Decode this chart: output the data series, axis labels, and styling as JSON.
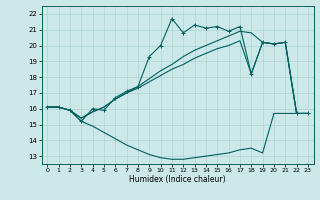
{
  "title": "",
  "xlabel": "Humidex (Indice chaleur)",
  "xlim": [
    -0.5,
    23.5
  ],
  "ylim": [
    12.5,
    22.5
  ],
  "xticks": [
    0,
    1,
    2,
    3,
    4,
    5,
    6,
    7,
    8,
    9,
    10,
    11,
    12,
    13,
    14,
    15,
    16,
    17,
    18,
    19,
    20,
    21,
    22,
    23
  ],
  "yticks": [
    13,
    14,
    15,
    16,
    17,
    18,
    19,
    20,
    21,
    22
  ],
  "bg_color": "#cce8e8",
  "line_color": "#006060",
  "grid_color": "#aad4d4",
  "line_jagged_x": [
    0,
    1,
    2,
    3,
    4,
    5,
    6,
    7,
    8,
    9,
    10,
    11,
    12,
    13,
    14,
    15,
    16,
    17,
    18,
    19,
    20,
    21,
    22,
    23
  ],
  "line_jagged_y": [
    16.1,
    16.1,
    15.9,
    15.2,
    16.0,
    15.9,
    16.7,
    17.1,
    17.4,
    19.3,
    20.0,
    21.7,
    20.8,
    21.3,
    21.1,
    21.2,
    20.9,
    21.2,
    18.2,
    20.2,
    20.1,
    20.2,
    15.7,
    15.7
  ],
  "line_upper_x": [
    0,
    1,
    2,
    3,
    4,
    5,
    6,
    7,
    8,
    9,
    10,
    11,
    12,
    13,
    14,
    15,
    16,
    17,
    18,
    19,
    20,
    21,
    22,
    23
  ],
  "line_upper_y": [
    16.1,
    16.1,
    15.9,
    15.4,
    15.8,
    16.1,
    16.6,
    17.0,
    17.4,
    17.9,
    18.4,
    18.8,
    19.3,
    19.7,
    20.0,
    20.3,
    20.6,
    20.9,
    20.8,
    20.2,
    20.1,
    20.2,
    15.7,
    15.7
  ],
  "line_mid_x": [
    0,
    1,
    2,
    3,
    4,
    5,
    6,
    7,
    8,
    9,
    10,
    11,
    12,
    13,
    14,
    15,
    16,
    17,
    18,
    19,
    20,
    21,
    22,
    23
  ],
  "line_mid_y": [
    16.1,
    16.1,
    15.9,
    15.4,
    15.8,
    16.1,
    16.6,
    17.0,
    17.3,
    17.7,
    18.1,
    18.5,
    18.8,
    19.2,
    19.5,
    19.8,
    20.0,
    20.3,
    18.2,
    20.2,
    20.1,
    20.2,
    15.7,
    15.7
  ],
  "line_bot_x": [
    0,
    1,
    2,
    3,
    4,
    5,
    6,
    7,
    8,
    9,
    10,
    11,
    12,
    13,
    14,
    15,
    16,
    17,
    18,
    19,
    20,
    21,
    22,
    23
  ],
  "line_bot_y": [
    16.1,
    16.1,
    15.9,
    15.2,
    14.9,
    14.5,
    14.1,
    13.7,
    13.4,
    13.1,
    12.9,
    12.8,
    12.8,
    12.9,
    13.0,
    13.1,
    13.2,
    13.4,
    13.5,
    13.2,
    15.7,
    15.7,
    15.7,
    15.7
  ]
}
